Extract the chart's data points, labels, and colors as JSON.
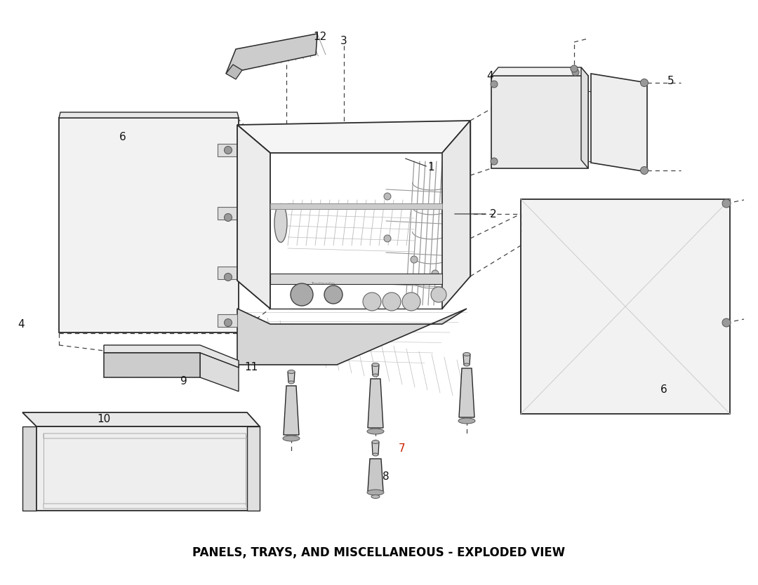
{
  "title": "PANELS, TRAYS, AND MISCELLANEOUS - EXPLODED VIEW",
  "title_fontsize": 12,
  "bg_color": "#ffffff",
  "line_color": "#2a2a2a",
  "light_line": "#888888",
  "dash_color": "#555555",
  "label_fontsize": 11,
  "fill_main": "#f0f0f0",
  "fill_dark": "#d8d8d8",
  "fill_mid": "#e5e5e5"
}
